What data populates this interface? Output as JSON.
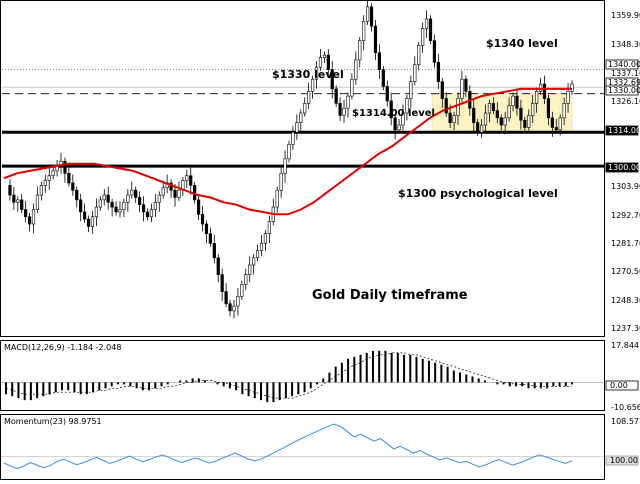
{
  "chart_data": [
    {
      "type": "candlestick",
      "ylim": [
        1230,
        1368
      ],
      "y_ticks": [
        "1359.90",
        "1348.30",
        "1337.10",
        "1326.10",
        "1314.00",
        "1303.90",
        "1292.70",
        "1281.70",
        "1270.50",
        "1259.30",
        "1248.30",
        "1237.30"
      ],
      "price_tags": [
        "1340.00",
        "1332.69",
        "1330.00",
        "1314.00",
        "1300.00"
      ],
      "levels": [
        {
          "label": "$1340 level",
          "value": 1340
        },
        {
          "label": "$1330 level",
          "value": 1330
        },
        {
          "label": "$1314.00 level",
          "value": 1314
        },
        {
          "label": "$1300 psychological level",
          "value": 1300
        }
      ],
      "range_box": [
        1314,
        1330
      ],
      "annotation": "Gold Daily timeframe",
      "close_path": [
        1292,
        1288,
        1285,
        1286,
        1282,
        1279,
        1276,
        1282,
        1288,
        1292,
        1294,
        1296,
        1298,
        1300,
        1302,
        1297,
        1293,
        1290,
        1286,
        1281,
        1278,
        1275,
        1279,
        1283,
        1286,
        1288,
        1285,
        1283,
        1281,
        1282,
        1285,
        1288,
        1290,
        1287,
        1284,
        1281,
        1279,
        1282,
        1285,
        1288,
        1291,
        1293,
        1290,
        1287,
        1290,
        1294,
        1296,
        1292,
        1286,
        1280,
        1276,
        1272,
        1268,
        1262,
        1255,
        1248,
        1243,
        1240,
        1242,
        1246,
        1251,
        1255,
        1259,
        1262,
        1265,
        1268,
        1272,
        1277,
        1283,
        1290,
        1297,
        1303,
        1309,
        1314,
        1318,
        1322,
        1326,
        1331,
        1336,
        1341,
        1345,
        1346,
        1340,
        1332,
        1326,
        1321,
        1324,
        1329,
        1336,
        1344,
        1352,
        1360,
        1366,
        1358,
        1347,
        1340,
        1333,
        1327,
        1320,
        1315,
        1317,
        1322,
        1328,
        1335,
        1342,
        1350,
        1357,
        1361,
        1352,
        1343,
        1335,
        1328,
        1322,
        1318,
        1321,
        1328,
        1336,
        1331,
        1324,
        1318,
        1314,
        1317,
        1322,
        1326,
        1323,
        1320,
        1317,
        1320,
        1325,
        1329,
        1324,
        1319,
        1316,
        1321,
        1326,
        1331,
        1334,
        1328,
        1320,
        1316,
        1315,
        1320,
        1326,
        1331,
        1334
      ],
      "ma_path": [
        1295,
        1297,
        1298,
        1299,
        1300,
        1301,
        1301,
        1301,
        1300,
        1299,
        1298,
        1296,
        1294,
        1292,
        1290,
        1288,
        1287,
        1285,
        1284,
        1282,
        1281,
        1280,
        1280,
        1282,
        1285,
        1289,
        1293,
        1297,
        1301,
        1305,
        1308,
        1312,
        1316,
        1320,
        1323,
        1325,
        1327,
        1329,
        1330,
        1331,
        1332,
        1332,
        1332,
        1332,
        1332
      ]
    },
    {
      "type": "bar",
      "title": "MACD(12,26,9) -1.184 -2.048",
      "ylim": [
        -13,
        20
      ],
      "y_ticks": [
        "17.844",
        "0.00",
        "-10.656"
      ],
      "values": [
        -6,
        -7,
        -8,
        -9,
        -9,
        -8,
        -7,
        -6,
        -5,
        -4,
        -4,
        -5,
        -6,
        -6,
        -5,
        -4,
        -3,
        -2,
        -1,
        -1,
        -2,
        -3,
        -4,
        -4,
        -3,
        -2,
        -1,
        0,
        1,
        1,
        2,
        2,
        1,
        0,
        -1,
        -2,
        -3,
        -4,
        -6,
        -7,
        -8,
        -9,
        -10,
        -10,
        -9,
        -8,
        -7,
        -6,
        -5,
        -3,
        -1,
        2,
        5,
        8,
        10,
        12,
        13,
        14,
        15,
        16,
        16,
        16,
        15,
        15,
        14,
        14,
        13,
        12,
        11,
        10,
        9,
        8,
        6,
        5,
        4,
        3,
        2,
        1,
        0,
        -1,
        -1,
        -2,
        -2,
        -2,
        -3,
        -3,
        -3,
        -3,
        -2,
        -2,
        -2,
        -1
      ],
      "signal": [
        -3,
        -4,
        -5,
        -6,
        -6,
        -6,
        -6,
        -6,
        -5,
        -5,
        -5,
        -5,
        -5,
        -5,
        -5,
        -4,
        -4,
        -3,
        -3,
        -2,
        -2,
        -2,
        -3,
        -3,
        -3,
        -3,
        -2,
        -2,
        -1,
        0,
        0,
        1,
        1,
        1,
        0,
        0,
        -1,
        -2,
        -3,
        -4,
        -5,
        -6,
        -7,
        -8,
        -8,
        -8,
        -8,
        -7,
        -6,
        -5,
        -3,
        -1,
        1,
        3,
        5,
        7,
        9,
        10,
        12,
        13,
        14,
        14,
        15,
        15,
        15,
        14,
        14,
        13,
        12,
        11,
        10,
        9,
        8,
        7,
        6,
        5,
        4,
        3,
        2,
        1,
        0,
        0,
        -1,
        -1,
        -1,
        -2,
        -2,
        -2,
        -2,
        -2,
        -2,
        -2
      ]
    },
    {
      "type": "line",
      "title": "Momentum(23) 98.9751",
      "ylim": [
        95,
        109
      ],
      "y_ticks": [
        "108.5773",
        "100.00"
      ],
      "values": [
        98.5,
        97.8,
        97.2,
        97.8,
        98.6,
        98.0,
        97.4,
        97.9,
        98.8,
        99.4,
        98.7,
        98.1,
        98.6,
        99.2,
        99.8,
        99.1,
        98.4,
        98.9,
        99.5,
        100.1,
        99.4,
        98.8,
        99.3,
        99.9,
        100.4,
        99.8,
        99.1,
        98.6,
        99.2,
        99.7,
        99.1,
        98.5,
        98.9,
        99.6,
        100.2,
        100.8,
        100.1,
        99.4,
        99.0,
        99.5,
        100.2,
        101.0,
        101.8,
        102.6,
        103.4,
        104.2,
        104.9,
        105.6,
        106.3,
        107.0,
        107.6,
        107.0,
        105.8,
        104.6,
        105.2,
        104.4,
        103.6,
        104.2,
        103.0,
        101.8,
        102.4,
        101.6,
        100.8,
        101.4,
        100.6,
        99.9,
        99.2,
        99.7,
        99.1,
        98.6,
        98.9,
        98.2,
        97.6,
        98.1,
        98.8,
        99.3,
        98.6,
        98.0,
        98.5,
        99.1,
        99.8,
        100.4,
        100.0,
        99.4,
        98.9,
        98.4,
        99.0
      ]
    }
  ]
}
